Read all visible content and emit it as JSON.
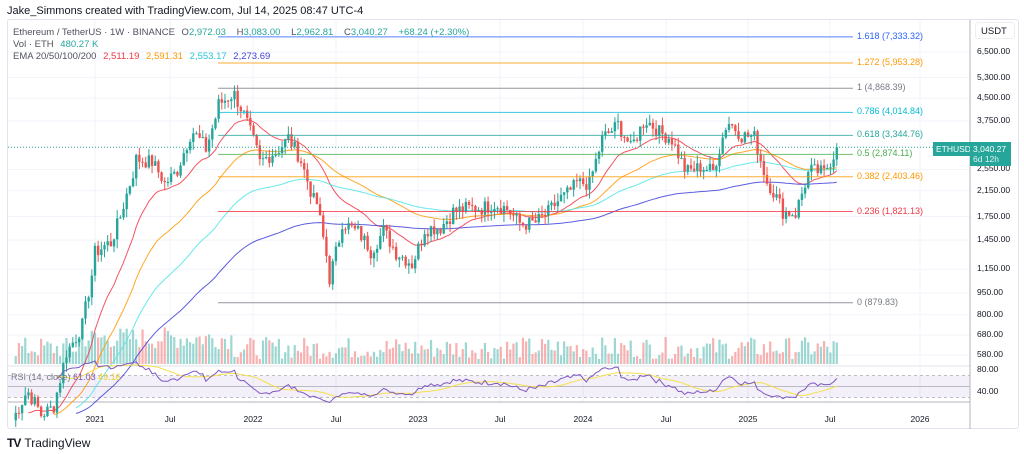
{
  "credit": "Jake_Simmons created with TradingView.com, Jul 14, 2025 08:47 UTC-4",
  "legend": {
    "symbol": "Ethereum / TetherUS · 1W · BINANCE",
    "o_label": "O",
    "o": "2,972.03",
    "h_label": "H",
    "h": "3,083.00",
    "l_label": "L",
    "l": "2,962.81",
    "c_label": "C",
    "c": "3,040.27",
    "change": "+68.24 (+2.30%)",
    "vol_label": "Vol · ETH",
    "vol": "480.27 K",
    "ema_label": "EMA 20/50/100/200",
    "ema_values": [
      "2,511.19",
      "2,591.31",
      "2,553.17",
      "2,273.69"
    ]
  },
  "rsi": {
    "label": "RSI (14, close)",
    "value": "61.03",
    "ma": "49.16"
  },
  "price_tag": {
    "symbol": "ETHUSDT",
    "price": "3,040.27",
    "countdown": "6d 12h"
  },
  "currency": "USDT",
  "footer": "TradingView",
  "colors": {
    "up": "#26a69a",
    "down": "#ef5350",
    "ema": [
      "#f23645",
      "#ff9800",
      "#4de5e5",
      "#3f3fd9"
    ],
    "rsi": "#7e57c2",
    "rsi_ma": "#f5e04a"
  },
  "chart_data": {
    "type": "candlestick",
    "title": "Ethereum / TetherUS · 1W · BINANCE",
    "y_scale": "log",
    "y_ticks": [
      "6,500.00",
      "5,300.00",
      "4,500.00",
      "3,750.00",
      "2,550.00",
      "2,150.00",
      "1,750.00",
      "1,450.00",
      "1,150.00",
      "950.00",
      "800.00",
      "680.00",
      "580.00"
    ],
    "rsi_ticks": [
      "80.00",
      "40.00"
    ],
    "x_ticks": [
      "2021",
      "Jul",
      "2022",
      "Jul",
      "2023",
      "Jul",
      "2024",
      "Jul",
      "2025",
      "Jul",
      "2026"
    ],
    "grid": true,
    "monthly_closes": {
      "start": "2020-07",
      "values": [
        345,
        430,
        360,
        386,
        615,
        737,
        1314,
        1416,
        1919,
        2773,
        2707,
        2275,
        2536,
        3433,
        3001,
        4288,
        4631,
        3683,
        2688,
        2922,
        3282,
        2727,
        1942,
        1067,
        1678,
        1553,
        1328,
        1572,
        1295,
        1196,
        1585,
        1605,
        1822,
        1870,
        1874,
        1934,
        1857,
        1645,
        1671,
        1815,
        2052,
        2283,
        2283,
        3340,
        3647,
        3015,
        3762,
        3434,
        3233,
        2513,
        2602,
        2518,
        3705,
        3337,
        3300,
        2237,
        1822,
        1794,
        2528,
        2486,
        3040
      ]
    },
    "fib_levels": [
      {
        "label": "1.618 (7,333.32)",
        "price": 7333.32,
        "color": "#2962ff"
      },
      {
        "label": "1.272 (5,953.28)",
        "price": 5953.28,
        "color": "#ff9800"
      },
      {
        "label": "1 (4,868.39)",
        "price": 4868.39,
        "color": "#787b86"
      },
      {
        "label": "0.786 (4,014.84)",
        "price": 4014.84,
        "color": "#00bcd4"
      },
      {
        "label": "0.618 (3,344.76)",
        "price": 3344.76,
        "color": "#26a69a"
      },
      {
        "label": "0.5 (2,874.11)",
        "price": 2874.11,
        "color": "#4caf50"
      },
      {
        "label": "0.382 (2,403.46)",
        "price": 2403.46,
        "color": "#ff9800"
      },
      {
        "label": "0.236 (1,821.13)",
        "price": 1821.13,
        "color": "#f23645"
      },
      {
        "label": "0 (879.83)",
        "price": 879.83,
        "color": "#787b86"
      }
    ]
  }
}
